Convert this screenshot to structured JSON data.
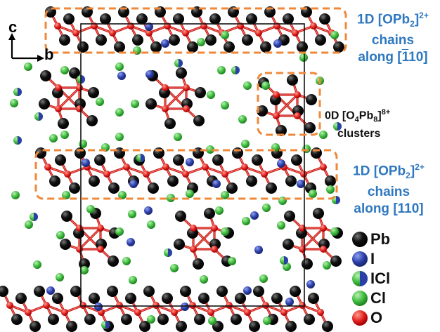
{
  "labels": {
    "chain_top": {
      "line1_prefix": "1D [OPb",
      "line1_sub": "2",
      "line1_close": "]",
      "line1_sup": "2+",
      "line2": "chains",
      "line3_prefix": "along [",
      "line3_over": "1",
      "line3_suffix": "10]"
    },
    "cluster": {
      "line1_prefix": "0D [O",
      "line1_sub1": "4",
      "line1_mid": "Pb",
      "line1_sub2": "8",
      "line1_close": "]",
      "line1_sup": "8+",
      "line2": "clusters"
    },
    "chain_mid": {
      "line1_prefix": "1D [OPb",
      "line1_sub": "2",
      "line1_close": "]",
      "line1_sup": "2+",
      "line2": "chains",
      "line3": "along [110]"
    }
  },
  "axes": {
    "c": "c",
    "b": "b"
  },
  "legend": [
    {
      "label": "Pb",
      "color": "#000000"
    },
    {
      "label": "I",
      "color": "#2b3fa8"
    },
    {
      "label": "ICl",
      "color": "split"
    },
    {
      "label": "Cl",
      "color": "#3dbb3d"
    },
    {
      "label": "O",
      "color": "#e02020"
    }
  ],
  "colors": {
    "pb": "#000000",
    "i": "#2b3fa8",
    "cl": "#3dbb3d",
    "o": "#e02020",
    "box": "#f0883a",
    "label_blue": "#2e78bf"
  }
}
